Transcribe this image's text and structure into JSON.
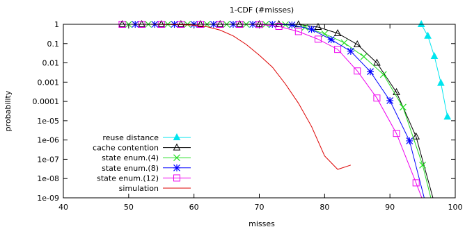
{
  "chart_data": {
    "type": "line",
    "title": "1-CDF (#misses)",
    "xlabel": "misses",
    "ylabel": "probability",
    "xlim": [
      40,
      100
    ],
    "ylim": [
      1e-09,
      1
    ],
    "y_scale": "log",
    "grid": false,
    "legend_position": "bottom-left",
    "x_ticks": [
      40,
      50,
      60,
      70,
      80,
      90,
      100
    ],
    "x_tick_labels": [
      "40",
      "50",
      "60",
      "70",
      "80",
      "90",
      "100"
    ],
    "y_ticks": [
      1,
      0.1,
      0.01,
      0.001,
      0.0001,
      1e-05,
      1e-06,
      1e-07,
      1e-08,
      1e-09
    ],
    "y_tick_labels": [
      "1",
      "0.1",
      "0.01",
      "0.001",
      "0.0001",
      "1e-05",
      "1e-06",
      "1e-07",
      "1e-08",
      "1e-09"
    ],
    "series": [
      {
        "name": "reuse distance",
        "color": "#00e5ee",
        "marker": "filled-triangle",
        "x": [
          94.8,
          95.8,
          96.8,
          97.8,
          98.8
        ],
        "y": [
          1,
          0.25,
          0.022,
          0.0009,
          1.6e-05
        ]
      },
      {
        "name": "cache contention",
        "color": "#000000",
        "marker": "open-triangle",
        "x": [
          49,
          52,
          55,
          58,
          61,
          64,
          67,
          70,
          73,
          76,
          79,
          82,
          85,
          88,
          91,
          94,
          97
        ],
        "y": [
          1,
          1,
          1,
          1,
          1,
          1,
          1,
          1,
          1,
          0.98,
          0.72,
          0.34,
          0.09,
          0.01,
          0.0003,
          1.5e-06,
          3e-10
        ]
      },
      {
        "name": "state enum.(4)",
        "color": "#22dd22",
        "marker": "x",
        "x": [
          50,
          53,
          56,
          59,
          62,
          65,
          68,
          71,
          74,
          77,
          80,
          83,
          86,
          89,
          92,
          95,
          97
        ],
        "y": [
          1,
          1,
          1,
          1,
          1,
          1,
          1,
          1,
          0.95,
          0.7,
          0.32,
          0.11,
          0.021,
          0.0025,
          5e-05,
          5e-08,
          1e-10
        ]
      },
      {
        "name": "state enum.(8)",
        "color": "#0000ff",
        "marker": "asterisk",
        "x": [
          51,
          54,
          57,
          60,
          63,
          66,
          69,
          72,
          75,
          78,
          81,
          84,
          87,
          90,
          93,
          96
        ],
        "y": [
          1,
          1,
          1,
          1,
          1,
          1,
          1,
          1,
          0.93,
          0.55,
          0.16,
          0.04,
          0.0035,
          0.00011,
          9e-07,
          1e-10
        ]
      },
      {
        "name": "state enum.(12)",
        "color": "#ee00ee",
        "marker": "open-square",
        "x": [
          49,
          52,
          55,
          58,
          61,
          64,
          67,
          70,
          73,
          76,
          79,
          82,
          85,
          88,
          91,
          94,
          96
        ],
        "y": [
          1,
          1,
          1,
          1,
          1,
          1,
          1,
          0.98,
          0.78,
          0.42,
          0.17,
          0.05,
          0.0038,
          0.00015,
          2.2e-06,
          6e-09,
          1e-10
        ]
      },
      {
        "name": "simulation",
        "color": "#dd0000",
        "marker": "none",
        "x": [
          42,
          46,
          50,
          54,
          58,
          60,
          62,
          64,
          66,
          68,
          70,
          72,
          74,
          76,
          78,
          80,
          82,
          84
        ],
        "y": [
          1,
          1,
          1,
          0.995,
          0.96,
          0.9,
          0.75,
          0.5,
          0.25,
          0.09,
          0.025,
          0.006,
          0.0008,
          8e-05,
          5e-06,
          1.5e-07,
          3e-08,
          5e-08
        ]
      }
    ]
  }
}
